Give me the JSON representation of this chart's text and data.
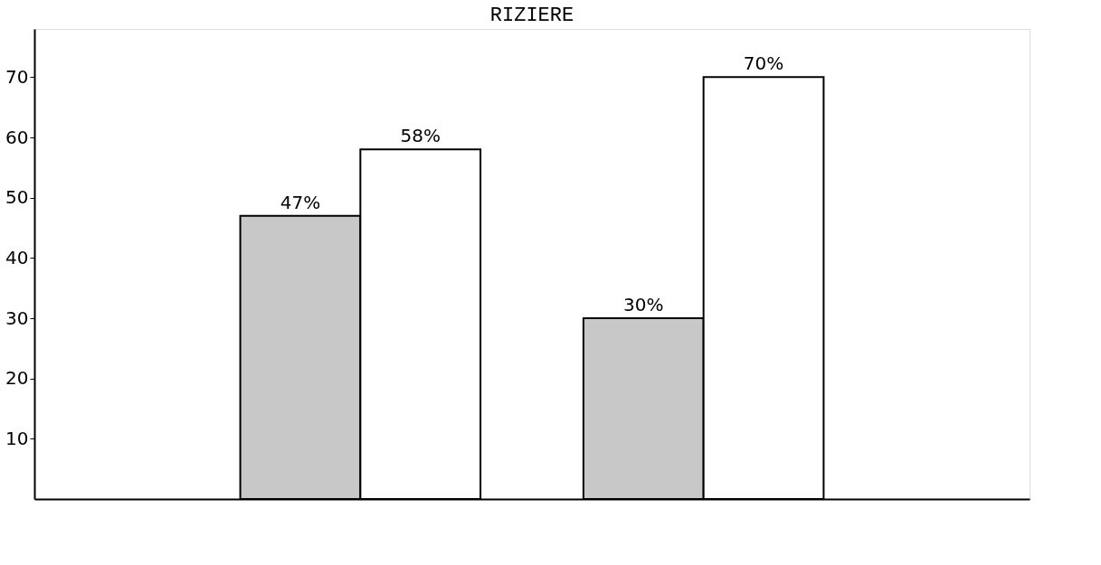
{
  "chart_data": {
    "type": "bar",
    "title": "RIZIERE",
    "categories": [
      null,
      null
    ],
    "series": [
      {
        "color": "#c8c8c8",
        "values": [
          47,
          30
        ],
        "value_labels": [
          "47%",
          "30%"
        ]
      },
      {
        "color": "#ffffff",
        "values": [
          58,
          70
        ],
        "value_labels": [
          "58%",
          "70%"
        ]
      }
    ],
    "ylim": [
      0,
      78
    ],
    "yticks": [
      10,
      20,
      30,
      40,
      50,
      60,
      70
    ],
    "grid": false,
    "legend": false,
    "tick_labels": "y"
  }
}
